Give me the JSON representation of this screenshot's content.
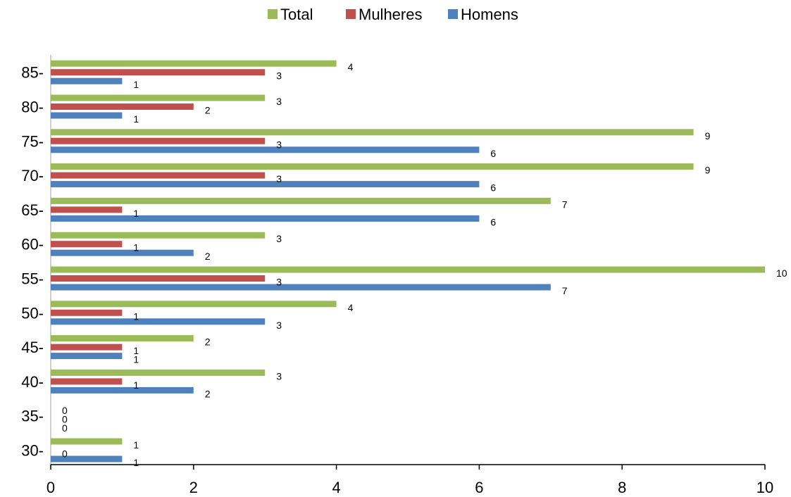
{
  "chart_data": {
    "type": "bar",
    "orientation": "horizontal",
    "categories": [
      "30-",
      "35-",
      "40-",
      "45-",
      "50-",
      "55-",
      "60-",
      "65-",
      "70-",
      "75-",
      "80-",
      "85-"
    ],
    "series": [
      {
        "name": "Total",
        "color": "#9BBB59",
        "values": [
          1,
          0,
          3,
          2,
          4,
          10,
          3,
          7,
          9,
          9,
          3,
          4
        ]
      },
      {
        "name": "Mulheres",
        "color": "#C0504D",
        "values": [
          0,
          0,
          1,
          1,
          1,
          3,
          1,
          1,
          3,
          3,
          2,
          3
        ]
      },
      {
        "name": "Homens",
        "color": "#4F81BD",
        "values": [
          1,
          0,
          2,
          1,
          3,
          7,
          2,
          6,
          6,
          6,
          1,
          1
        ]
      }
    ],
    "xlim": [
      0,
      10
    ],
    "xticks": [
      0,
      2,
      4,
      6,
      8,
      10
    ],
    "grid": false,
    "legend": "top"
  }
}
